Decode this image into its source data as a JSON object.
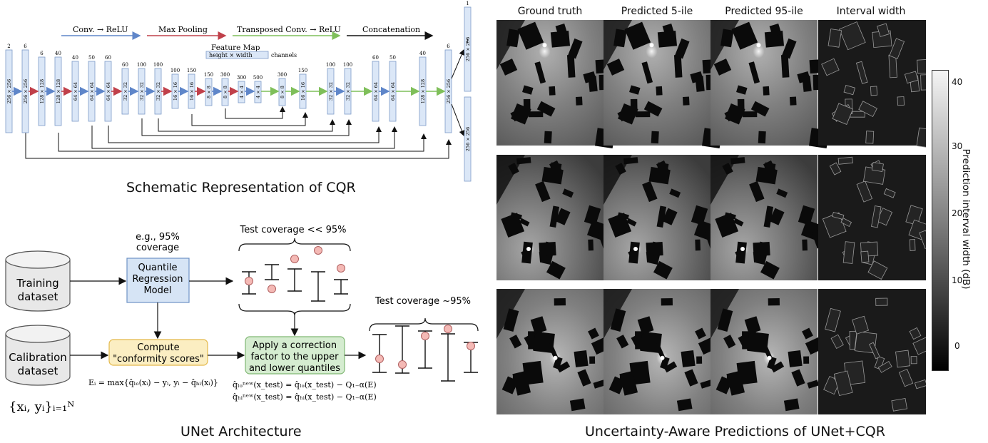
{
  "unet": {
    "legend": {
      "conv_relu": "Conv. → ReLU",
      "max_pooling": "Max Pooling",
      "transposed_conv": "Transposed Conv. → ReLU",
      "concatenation": "Concatenation",
      "feature_map": "Feature Map",
      "height_width": "height × width",
      "channels": "channels",
      "colors": {
        "conv": "#5f86c9",
        "pool": "#c0404a",
        "tconv": "#7fbf5a",
        "concat": "#111111",
        "block": "#dbe7f7",
        "block_border": "#7d9cc8"
      }
    },
    "blocks": [
      {
        "channels": "2",
        "size": "256 × 256"
      },
      {
        "channels": "6",
        "size": "256 × 256"
      },
      {
        "channels": "6",
        "size": "128 × 128"
      },
      {
        "channels": "40",
        "size": "128 × 128"
      },
      {
        "channels": "40",
        "size": "64 × 64"
      },
      {
        "channels": "50",
        "size": "64 × 64"
      },
      {
        "channels": "60",
        "size": "64 × 64"
      },
      {
        "channels": "60",
        "size": "32 × 32"
      },
      {
        "channels": "100",
        "size": "32 × 32"
      },
      {
        "channels": "100",
        "size": "32 × 32"
      },
      {
        "channels": "100",
        "size": "16 × 16"
      },
      {
        "channels": "150",
        "size": "16 × 16"
      },
      {
        "channels": "150",
        "size": "8 × 8"
      },
      {
        "channels": "300",
        "size": "8 × 8"
      },
      {
        "channels": "300",
        "size": "4 × 4"
      },
      {
        "channels": "500",
        "size": "4 × 4"
      },
      {
        "channels": "300",
        "size": "8 × 8"
      },
      {
        "channels": "150",
        "size": "16 × 16"
      },
      {
        "channels": "100",
        "size": "32 × 32"
      },
      {
        "channels": "100",
        "size": "32 × 32"
      },
      {
        "channels": "60",
        "size": "64 × 64"
      },
      {
        "channels": "50",
        "size": "64 × 64"
      },
      {
        "channels": "40",
        "size": "128 × 128"
      },
      {
        "channels": "6",
        "size": "256 × 256"
      },
      {
        "channels": "1",
        "size": "256 × 256"
      },
      {
        "channels": "",
        "size": "256 × 256"
      },
      {
        "channels": "1",
        "size": ""
      }
    ],
    "caption": "Schematic Representation of CQR"
  },
  "cqr": {
    "training_label": "Training\ndataset",
    "calibration_label": "Calibration\ndataset",
    "coverage_note": "e.g., 95%\ncoverage",
    "qr_model": "Quantile\nRegression\nModel",
    "compute_scores": "Compute\n\"conformity scores\"",
    "correction": "Apply a correction\nfactor to the upper\nand lower quantiles",
    "test_low": "Test coverage << 95%",
    "test_ok": "Test coverage ~95%",
    "score_formula": "Eᵢ = max{q̂ₗₒ(xᵢ) − yᵢ, yᵢ − q̂ₕᵢ(xᵢ)}",
    "lo_formula": "q̂ₗₒⁿᵉʷ(x_test) = q̂ₗₒ(x_test) − Q₁₋α(E)",
    "hi_formula": "q̂ₕᵢⁿᵉʷ(x_test) = q̂ₕᵢ(x_test) − Q₁₋α(E)",
    "dataset_formula": "{xᵢ, yᵢ}ᵢ₌₁ᴺ",
    "caption": "UNet Architecture",
    "colors": {
      "qr": "#d6e4f5",
      "qr_border": "#6e93c6",
      "scores": "#fbeec2",
      "scores_border": "#e3b84a",
      "correct": "#d5ecd0",
      "correct_border": "#80b874",
      "dot": "#f4b9b5"
    }
  },
  "predictions": {
    "columns": [
      "Ground truth",
      "Predicted 5-ile",
      "Predicted 95-ile",
      "Interval width"
    ],
    "colorbar_label": "Prediction interval width (dB)",
    "colorbar_ticks": [
      "40",
      "30",
      "20",
      "10",
      "0"
    ],
    "caption": "Uncertainty-Aware Predictions of UNet+CQR"
  }
}
